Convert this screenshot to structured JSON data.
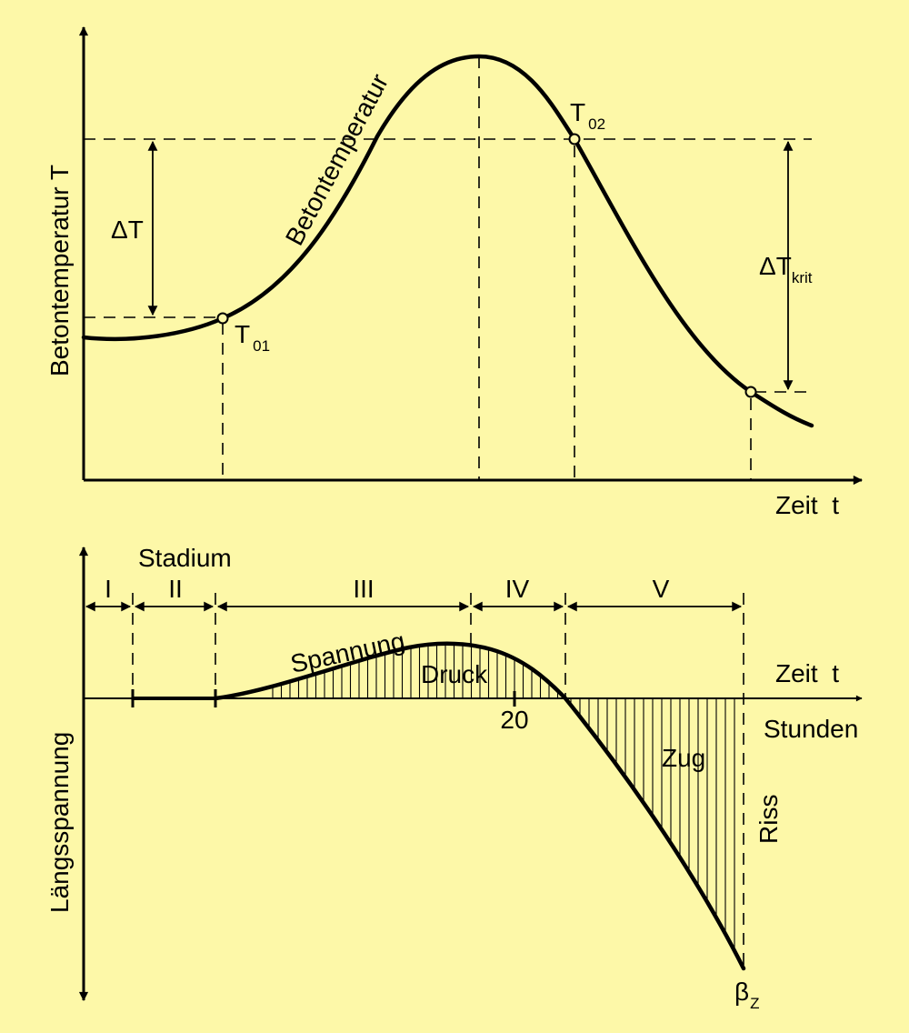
{
  "colors": {
    "background": "#FDF8A8",
    "ink": "#000000"
  },
  "top_chart": {
    "y_axis_label": "Betontemperatur T",
    "x_axis_label": "Zeit  t",
    "curve_label": "Betontemperatur",
    "delta_t": "ΔT",
    "delta_t_krit": {
      "main": "ΔT",
      "sub": "krit"
    },
    "t01": {
      "main": "T",
      "sub": "01"
    },
    "t02": {
      "main": "T",
      "sub": "02"
    }
  },
  "bottom_chart": {
    "y_axis_label": "Längsspannung",
    "x_axis_label": "Zeit  t",
    "x_unit_label": "Stunden",
    "stadium_title": "Stadium",
    "stages": [
      "I",
      "II",
      "III",
      "IV",
      "V"
    ],
    "tick_20": "20",
    "curve_label": "Spannung",
    "druck": "Druck",
    "zug": "Zug",
    "riss": "Riss",
    "beta_z": {
      "main": "β",
      "sub": "Z"
    }
  }
}
